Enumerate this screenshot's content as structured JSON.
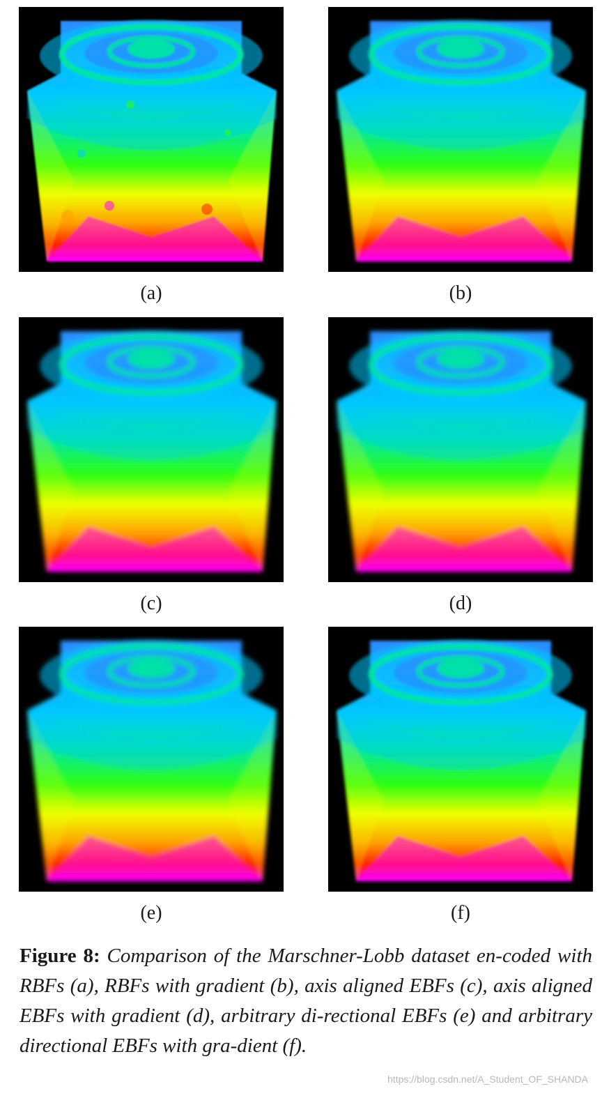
{
  "panels": [
    {
      "label": "(a)",
      "style": "noisy"
    },
    {
      "label": "(b)",
      "style": "sharp"
    },
    {
      "label": "(c)",
      "style": "smooth"
    },
    {
      "label": "(d)",
      "style": "smooth"
    },
    {
      "label": "(e)",
      "style": "smooth"
    },
    {
      "label": "(f)",
      "style": "sharp"
    }
  ],
  "caption": {
    "figure_label": "Figure 8:",
    "text": "Comparison of the Marschner-Lobb dataset en-coded with RBFs (a), RBFs with gradient (b), axis aligned EBFs (c), axis aligned EBFs with gradient (d), arbitrary di-rectional EBFs (e) and arbitrary directional EBFs with gra-dient (f)."
  },
  "watermark": "https://blog.csdn.net/A_Student_OF_SHANDA",
  "colors": {
    "background": "#000000",
    "colormap": [
      "#ff00ff",
      "#ff2000",
      "#ffa000",
      "#f0ff00",
      "#30ff10",
      "#00e8a0",
      "#00c8ff",
      "#2a8cff"
    ]
  }
}
